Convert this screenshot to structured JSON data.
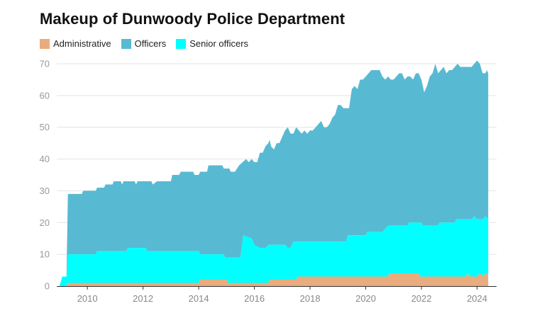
{
  "chart_data": {
    "type": "area",
    "stacked": true,
    "title": "Makeup of Dunwoody Police Department",
    "xlabel": "",
    "ylabel": "",
    "ylim": [
      0,
      70
    ],
    "xlim": [
      2008.9,
      2024.7
    ],
    "y_ticks": [
      0,
      10,
      20,
      30,
      40,
      50,
      60,
      70
    ],
    "x_ticks": [
      2010,
      2012,
      2014,
      2016,
      2018,
      2020,
      2022,
      2024
    ],
    "grid": true,
    "legend_position": "top-left",
    "series": [
      {
        "name": "Administrative",
        "color": "#e9ac7e",
        "points": [
          [
            2009.0,
            0
          ],
          [
            2009.25,
            0
          ],
          [
            2009.3,
            1
          ],
          [
            2014.0,
            1
          ],
          [
            2014.05,
            2
          ],
          [
            2015.0,
            2
          ],
          [
            2015.05,
            1
          ],
          [
            2016.5,
            1
          ],
          [
            2016.55,
            2
          ],
          [
            2017.5,
            2
          ],
          [
            2017.55,
            3
          ],
          [
            2020.8,
            3
          ],
          [
            2020.85,
            4
          ],
          [
            2021.9,
            4
          ],
          [
            2021.95,
            3
          ],
          [
            2023.6,
            3
          ],
          [
            2023.65,
            4
          ],
          [
            2023.75,
            3
          ],
          [
            2024.0,
            3
          ],
          [
            2024.1,
            4
          ],
          [
            2024.2,
            3
          ],
          [
            2024.3,
            4
          ],
          [
            2024.38,
            4
          ],
          [
            2024.4,
            3
          ]
        ]
      },
      {
        "name": "Officers",
        "color": "#58bad2",
        "totals": [
          [
            2009.0,
            0
          ],
          [
            2009.1,
            3
          ],
          [
            2009.25,
            3
          ],
          [
            2009.3,
            29
          ],
          [
            2009.8,
            29
          ],
          [
            2009.85,
            30
          ],
          [
            2010.3,
            30
          ],
          [
            2010.35,
            31
          ],
          [
            2010.6,
            31
          ],
          [
            2010.65,
            32
          ],
          [
            2010.9,
            32
          ],
          [
            2010.95,
            33
          ],
          [
            2011.2,
            33
          ],
          [
            2011.25,
            32
          ],
          [
            2011.3,
            33
          ],
          [
            2011.7,
            33
          ],
          [
            2011.75,
            32
          ],
          [
            2011.8,
            33
          ],
          [
            2012.3,
            33
          ],
          [
            2012.35,
            32
          ],
          [
            2012.5,
            33
          ],
          [
            2013.0,
            33
          ],
          [
            2013.05,
            35
          ],
          [
            2013.3,
            35
          ],
          [
            2013.35,
            36
          ],
          [
            2013.8,
            36
          ],
          [
            2013.85,
            35
          ],
          [
            2014.0,
            35
          ],
          [
            2014.05,
            36
          ],
          [
            2014.3,
            36
          ],
          [
            2014.35,
            38
          ],
          [
            2014.85,
            38
          ],
          [
            2014.9,
            37
          ],
          [
            2015.1,
            37
          ],
          [
            2015.15,
            36
          ],
          [
            2015.3,
            36
          ],
          [
            2015.45,
            38
          ],
          [
            2015.7,
            40
          ],
          [
            2015.8,
            39
          ],
          [
            2015.9,
            40
          ],
          [
            2016.0,
            39
          ],
          [
            2016.1,
            39
          ],
          [
            2016.2,
            42
          ],
          [
            2016.3,
            42
          ],
          [
            2016.4,
            44
          ],
          [
            2016.5,
            45
          ],
          [
            2016.55,
            46
          ],
          [
            2016.6,
            44
          ],
          [
            2016.7,
            43
          ],
          [
            2016.8,
            45
          ],
          [
            2016.9,
            45
          ],
          [
            2017.0,
            47
          ],
          [
            2017.1,
            49
          ],
          [
            2017.2,
            50
          ],
          [
            2017.3,
            48
          ],
          [
            2017.4,
            48
          ],
          [
            2017.5,
            50
          ],
          [
            2017.6,
            49
          ],
          [
            2017.7,
            48
          ],
          [
            2017.8,
            49
          ],
          [
            2017.9,
            48
          ],
          [
            2018.0,
            49
          ],
          [
            2018.1,
            49
          ],
          [
            2018.2,
            50
          ],
          [
            2018.3,
            51
          ],
          [
            2018.4,
            52
          ],
          [
            2018.5,
            50
          ],
          [
            2018.6,
            50
          ],
          [
            2018.7,
            51
          ],
          [
            2018.8,
            53
          ],
          [
            2018.9,
            54
          ],
          [
            2019.0,
            57
          ],
          [
            2019.1,
            57
          ],
          [
            2019.2,
            56
          ],
          [
            2019.4,
            56
          ],
          [
            2019.5,
            62
          ],
          [
            2019.6,
            63
          ],
          [
            2019.7,
            62
          ],
          [
            2019.8,
            65
          ],
          [
            2019.9,
            65
          ],
          [
            2020.0,
            66
          ],
          [
            2020.1,
            67
          ],
          [
            2020.2,
            68
          ],
          [
            2020.5,
            68
          ],
          [
            2020.6,
            66
          ],
          [
            2020.7,
            65
          ],
          [
            2020.8,
            66
          ],
          [
            2020.9,
            65
          ],
          [
            2021.0,
            65
          ],
          [
            2021.1,
            66
          ],
          [
            2021.2,
            67
          ],
          [
            2021.3,
            67
          ],
          [
            2021.4,
            65
          ],
          [
            2021.5,
            66
          ],
          [
            2021.6,
            66
          ],
          [
            2021.7,
            65
          ],
          [
            2021.8,
            67
          ],
          [
            2021.9,
            67
          ],
          [
            2022.0,
            65
          ],
          [
            2022.1,
            61
          ],
          [
            2022.2,
            63
          ],
          [
            2022.3,
            66
          ],
          [
            2022.4,
            67
          ],
          [
            2022.5,
            70
          ],
          [
            2022.6,
            67
          ],
          [
            2022.7,
            68
          ],
          [
            2022.8,
            69
          ],
          [
            2022.9,
            67
          ],
          [
            2023.0,
            68
          ],
          [
            2023.1,
            68
          ],
          [
            2023.2,
            69
          ],
          [
            2023.3,
            70
          ],
          [
            2023.4,
            69
          ],
          [
            2023.8,
            69
          ],
          [
            2023.9,
            70
          ],
          [
            2024.0,
            71
          ],
          [
            2024.1,
            70
          ],
          [
            2024.2,
            67
          ],
          [
            2024.3,
            67
          ],
          [
            2024.35,
            68
          ],
          [
            2024.4,
            67
          ]
        ]
      },
      {
        "name": "Senior officers",
        "color": "#00ffff",
        "totals": [
          [
            2009.0,
            0
          ],
          [
            2009.1,
            3
          ],
          [
            2009.25,
            3
          ],
          [
            2009.3,
            10
          ],
          [
            2010.3,
            10
          ],
          [
            2010.35,
            11
          ],
          [
            2011.4,
            11
          ],
          [
            2011.45,
            12
          ],
          [
            2012.1,
            12
          ],
          [
            2012.15,
            11
          ],
          [
            2014.0,
            11
          ],
          [
            2014.05,
            10
          ],
          [
            2014.9,
            10
          ],
          [
            2014.95,
            9
          ],
          [
            2015.5,
            9
          ],
          [
            2015.6,
            16
          ],
          [
            2015.9,
            15
          ],
          [
            2016.0,
            13
          ],
          [
            2016.2,
            12
          ],
          [
            2016.4,
            12
          ],
          [
            2016.5,
            13
          ],
          [
            2017.1,
            13
          ],
          [
            2017.2,
            12
          ],
          [
            2017.3,
            12
          ],
          [
            2017.4,
            14
          ],
          [
            2019.3,
            14
          ],
          [
            2019.35,
            16
          ],
          [
            2020.0,
            16
          ],
          [
            2020.05,
            17
          ],
          [
            2020.6,
            17
          ],
          [
            2020.8,
            19
          ],
          [
            2021.5,
            19
          ],
          [
            2021.55,
            20
          ],
          [
            2022.0,
            20
          ],
          [
            2022.05,
            19
          ],
          [
            2022.6,
            19
          ],
          [
            2022.65,
            20
          ],
          [
            2023.2,
            20
          ],
          [
            2023.25,
            21
          ],
          [
            2023.8,
            21
          ],
          [
            2023.9,
            22
          ],
          [
            2024.0,
            21
          ],
          [
            2024.2,
            21
          ],
          [
            2024.3,
            22
          ],
          [
            2024.4,
            21
          ]
        ]
      }
    ]
  }
}
